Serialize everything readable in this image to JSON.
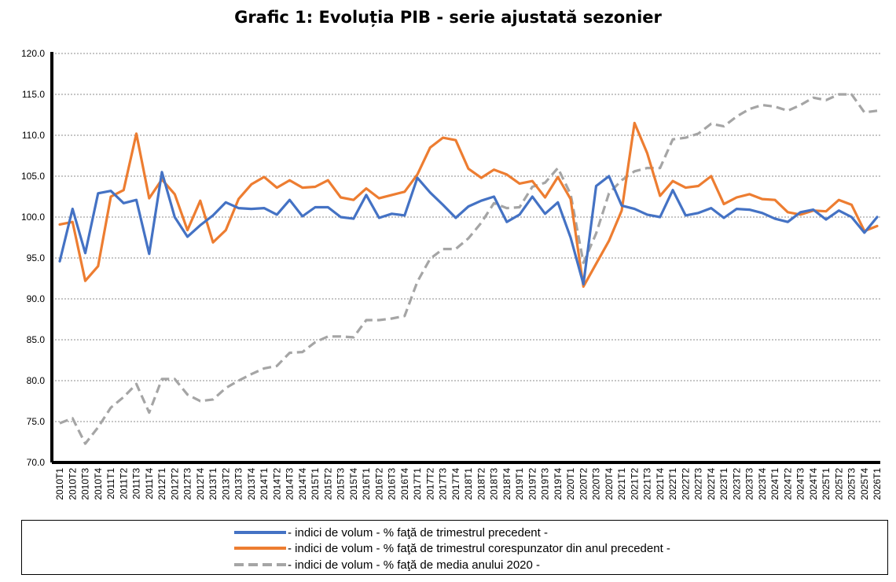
{
  "chart_data": {
    "type": "line",
    "title": "Grafic 1: Evoluția PIB - serie ajustată sezonier",
    "xlabel": "",
    "ylabel": "",
    "ylim": [
      70,
      120
    ],
    "y_ticks": [
      "70.0",
      "75.0",
      "80.0",
      "85.0",
      "90.0",
      "95.0",
      "100.0",
      "105.0",
      "110.0",
      "115.0",
      "120.0"
    ],
    "grid": true,
    "legend_position": "bottom",
    "categories": [
      "2010T1",
      "2010T2",
      "2010T3",
      "2010T4",
      "2011T1",
      "2011T2",
      "2011T3",
      "2011T4",
      "2012T1",
      "2012T2",
      "2012T3",
      "2012T4",
      "2013T1",
      "2013T2",
      "2013T3",
      "2013T4",
      "2014T1",
      "2014T2",
      "2014T3",
      "2014T4",
      "2015T1",
      "2015T2",
      "2015T3",
      "2015T4",
      "2016T1",
      "2016T2",
      "2016T3",
      "2016T4",
      "2017T1",
      "2017T2",
      "2017T3",
      "2017T4",
      "2018T1",
      "2018T2",
      "2018T3",
      "2018T4",
      "2019T1",
      "2019T2",
      "2019T3",
      "2019T4",
      "2020T1",
      "2020T2",
      "2020T3",
      "2020T4",
      "2021T1",
      "2021T2",
      "2021T3",
      "2021T4",
      "2022T1",
      "2022T2",
      "2022T3",
      "2022T4",
      "2023T1",
      "2023T2",
      "2023T3",
      "2023T4",
      "2024T1",
      "2024T2",
      "2024T3",
      "2024T4",
      "2025T1",
      "2025T2",
      "2025T3",
      "2025T4",
      "2026T1"
    ],
    "series": [
      {
        "name": "- indici de volum - % faţă de trimestrul precedent -",
        "color": "#4472c4",
        "style": "solid",
        "values": [
          94.6,
          101.0,
          95.6,
          102.9,
          103.2,
          101.7,
          102.1,
          95.5,
          105.5,
          100.0,
          97.6,
          99.0,
          100.2,
          101.8,
          101.1,
          101.0,
          101.1,
          100.3,
          102.1,
          100.1,
          101.2,
          101.2,
          100.0,
          99.8,
          102.7,
          99.9,
          100.4,
          100.2,
          104.8,
          103.0,
          101.5,
          99.9,
          101.3,
          102.0,
          102.5,
          99.4,
          100.3,
          102.5,
          100.4,
          101.8,
          97.5,
          91.8,
          103.8,
          105.0,
          101.4,
          101.0,
          100.3,
          100.0,
          103.3,
          100.2,
          100.5,
          101.1,
          99.9,
          101.0,
          100.9,
          100.5,
          99.8,
          99.4,
          100.6,
          100.9,
          99.7,
          100.8,
          100.0,
          98.1,
          100.0
        ]
      },
      {
        "name": "- indici de volum - % faţă de trimestrul corespunzator din anul precedent -",
        "color": "#ed7d31",
        "style": "solid",
        "values": [
          99.1,
          99.4,
          92.2,
          94.0,
          102.5,
          103.3,
          110.2,
          102.3,
          104.6,
          102.8,
          98.4,
          102.0,
          96.9,
          98.4,
          102.2,
          104.0,
          104.9,
          103.6,
          104.5,
          103.6,
          103.7,
          104.5,
          102.4,
          102.1,
          103.5,
          102.3,
          102.7,
          103.1,
          105.2,
          108.5,
          109.7,
          109.4,
          105.9,
          104.8,
          105.8,
          105.2,
          104.1,
          104.4,
          102.4,
          104.9,
          102.2,
          91.5,
          94.3,
          97.1,
          100.8,
          111.5,
          107.8,
          102.6,
          104.4,
          103.6,
          103.8,
          105.0,
          101.6,
          102.4,
          102.8,
          102.2,
          102.1,
          100.6,
          100.3,
          100.8,
          100.7,
          102.1,
          101.5,
          98.3,
          98.9
        ]
      },
      {
        "name": "- indici de volum - % faţă de media anului 2020 -",
        "color": "#a5a5a5",
        "style": "dashed",
        "values": [
          74.8,
          75.4,
          72.3,
          74.3,
          76.7,
          78.0,
          79.6,
          76.1,
          80.2,
          80.2,
          78.3,
          77.5,
          77.7,
          79.1,
          80.0,
          80.8,
          81.5,
          81.8,
          83.4,
          83.5,
          84.7,
          85.4,
          85.4,
          85.3,
          87.4,
          87.4,
          87.6,
          87.9,
          92.1,
          94.9,
          96.1,
          96.1,
          97.4,
          99.3,
          101.7,
          101.1,
          101.2,
          103.7,
          104.2,
          106.0,
          102.8,
          94.4,
          98.0,
          102.9,
          104.5,
          105.6,
          106.0,
          106.0,
          109.5,
          109.7,
          110.2,
          111.4,
          111.1,
          112.3,
          113.2,
          113.7,
          113.5,
          113.0,
          113.7,
          114.6,
          114.3,
          115.0,
          115.0,
          112.8,
          113.0
        ]
      }
    ]
  }
}
